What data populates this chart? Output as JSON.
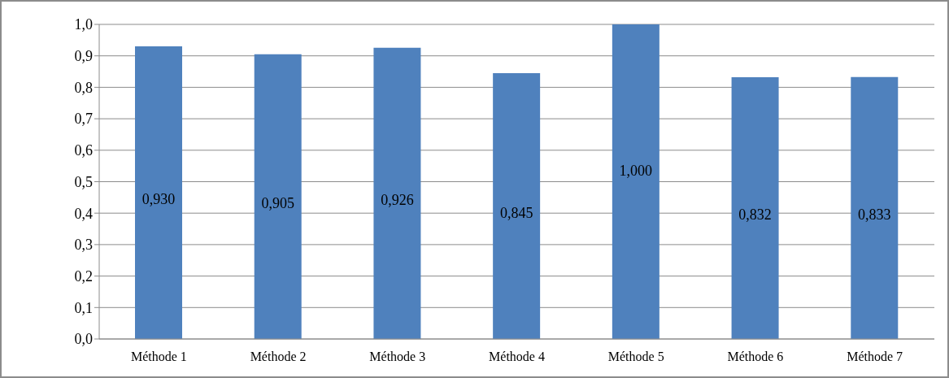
{
  "chart_data": {
    "type": "bar",
    "categories": [
      "Méthode 1",
      "Méthode 2",
      "Méthode 3",
      "Méthode 4",
      "Méthode 5",
      "Méthode 6",
      "Méthode 7"
    ],
    "values": [
      0.93,
      0.905,
      0.926,
      0.845,
      1.0,
      0.832,
      0.833
    ],
    "value_labels": [
      "0,930",
      "0,905",
      "0,926",
      "0,845",
      "1,000",
      "0,832",
      "0,833"
    ],
    "color": "#4f81bd",
    "ylim": [
      0,
      1
    ],
    "yticks": [
      {
        "value": 0,
        "label": "0,0"
      },
      {
        "value": 0.1,
        "label": "0,1"
      },
      {
        "value": 0.2,
        "label": "0,2"
      },
      {
        "value": 0.3,
        "label": "0,3"
      },
      {
        "value": 0.4,
        "label": "0,4"
      },
      {
        "value": 0.5,
        "label": "0,5"
      },
      {
        "value": 0.6,
        "label": "0,6"
      },
      {
        "value": 0.7,
        "label": "0,7"
      },
      {
        "value": 0.8,
        "label": "0,8"
      },
      {
        "value": 0.9,
        "label": "0,9"
      },
      {
        "value": 1,
        "label": "1,0"
      }
    ],
    "grid": "y",
    "legend": false
  }
}
